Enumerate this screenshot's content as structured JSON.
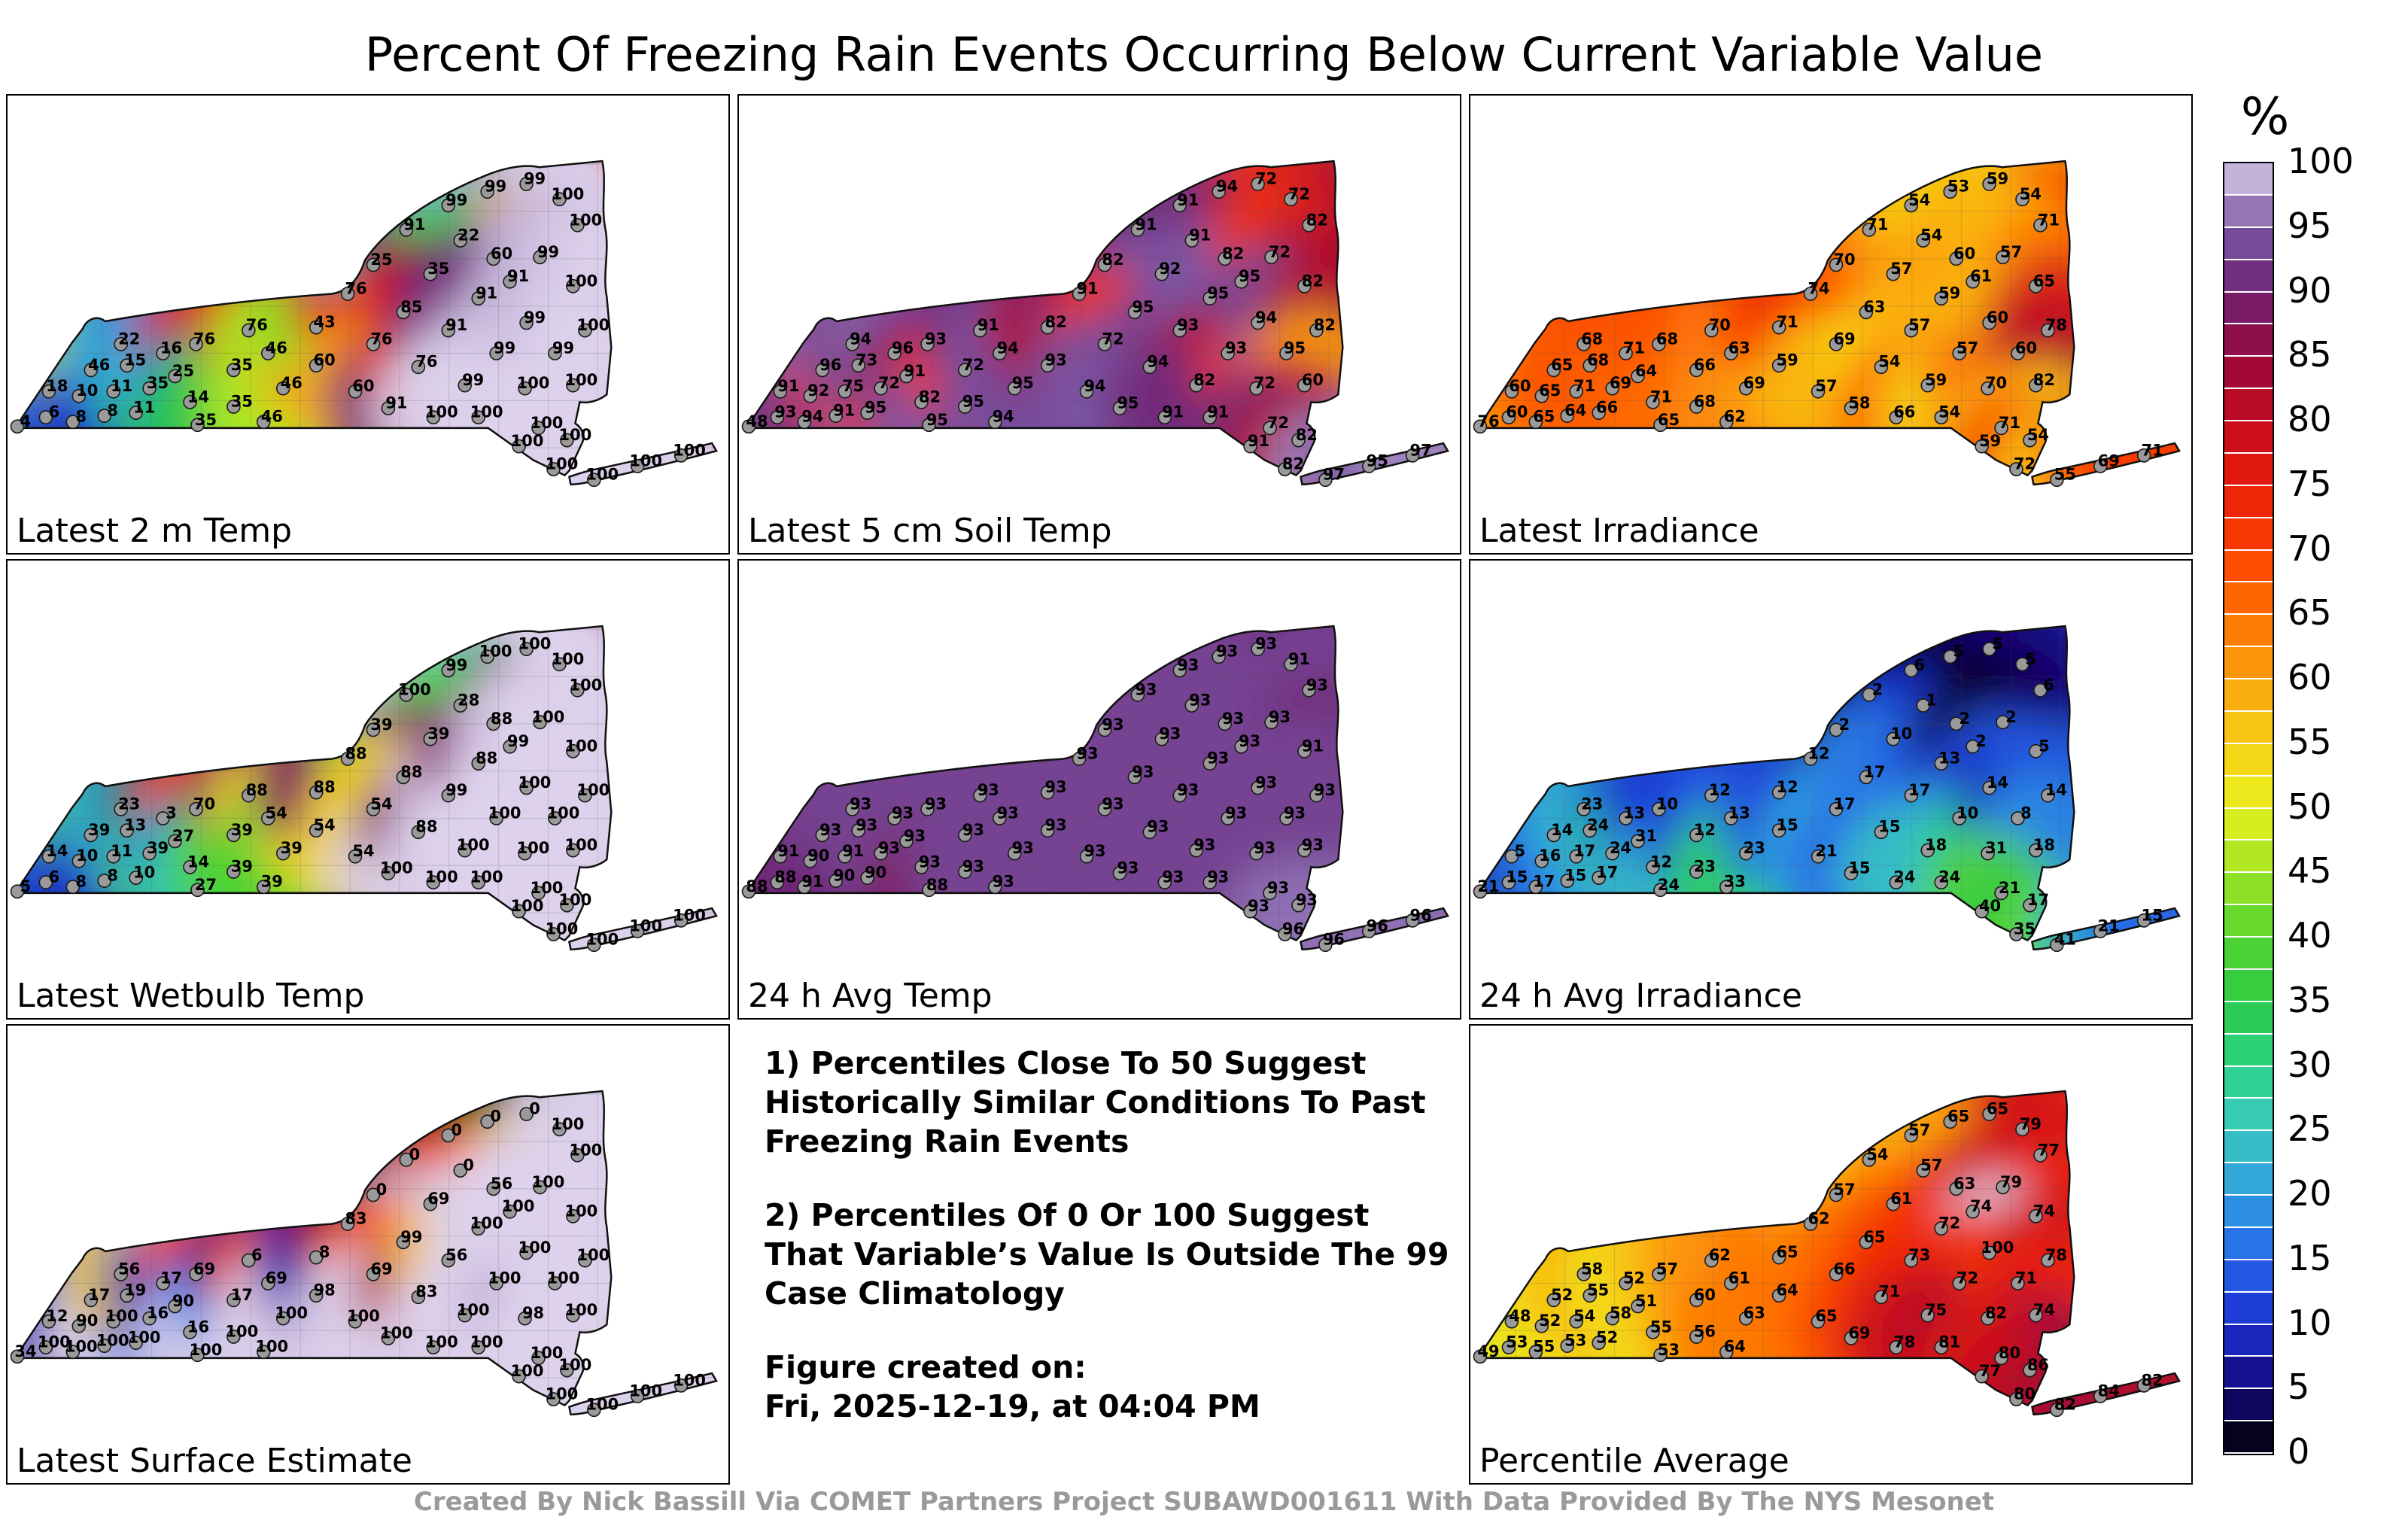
{
  "credit": "Created By Nick Bassill Via COMET Partners Project SUBAWD001611 With Data Provided By The NYS Mesonet",
  "notes": {
    "item1": "1) Percentiles Close To 50 Suggest Historically Similar Conditions To Past Freezing Rain Events",
    "item2": "2) Percentiles Of 0 Or 100 Suggest That Variable’s Value Is Outside The 99 Case Climatology",
    "created_label": "Figure created on:",
    "created_value": "Fri, 2025-12-19, at 04:04 PM"
  },
  "colorbar": {
    "unit_label": "%",
    "ticks": [
      100,
      95,
      90,
      85,
      80,
      75,
      70,
      65,
      60,
      55,
      50,
      45,
      40,
      35,
      30,
      25,
      20,
      15,
      10,
      5,
      0
    ]
  },
  "chart_data": {
    "type": "heatmap",
    "title": "Percent Of Freezing Rain Events Occurring Below Current Variable Value",
    "unit": "%",
    "value_range": [
      0,
      100
    ],
    "colormap_stops": [
      {
        "v": 0,
        "c": "#000000"
      },
      {
        "v": 5,
        "c": "#13077a"
      },
      {
        "v": 10,
        "c": "#1b2fd0"
      },
      {
        "v": 15,
        "c": "#2566e8"
      },
      {
        "v": 20,
        "c": "#2e9de0"
      },
      {
        "v": 25,
        "c": "#38c8c0"
      },
      {
        "v": 30,
        "c": "#2ed488"
      },
      {
        "v": 35,
        "c": "#2bca45"
      },
      {
        "v": 40,
        "c": "#55d52e"
      },
      {
        "v": 45,
        "c": "#9fe426"
      },
      {
        "v": 50,
        "c": "#e8f01e"
      },
      {
        "v": 55,
        "c": "#f6cf15"
      },
      {
        "v": 60,
        "c": "#fba10c"
      },
      {
        "v": 65,
        "c": "#fe7205"
      },
      {
        "v": 70,
        "c": "#fd4102"
      },
      {
        "v": 75,
        "c": "#e91c08"
      },
      {
        "v": 80,
        "c": "#c40a20"
      },
      {
        "v": 85,
        "c": "#98093f"
      },
      {
        "v": 90,
        "c": "#6e2173"
      },
      {
        "v": 95,
        "c": "#7c58a6"
      },
      {
        "v": 100,
        "c": "#dcd0ea"
      }
    ],
    "stations": [
      [
        22,
        426
      ],
      [
        60,
        414
      ],
      [
        96,
        420
      ],
      [
        64,
        380
      ],
      [
        104,
        386
      ],
      [
        120,
        352
      ],
      [
        138,
        412
      ],
      [
        150,
        380
      ],
      [
        168,
        346
      ],
      [
        180,
        408
      ],
      [
        198,
        376
      ],
      [
        160,
        318
      ],
      [
        216,
        330
      ],
      [
        232,
        360
      ],
      [
        260,
        318
      ],
      [
        252,
        394
      ],
      [
        262,
        424
      ],
      [
        310,
        400
      ],
      [
        310,
        352
      ],
      [
        330,
        300
      ],
      [
        356,
        330
      ],
      [
        376,
        376
      ],
      [
        350,
        420
      ],
      [
        420,
        346
      ],
      [
        420,
        296
      ],
      [
        462,
        252
      ],
      [
        496,
        214
      ],
      [
        540,
        168
      ],
      [
        596,
        136
      ],
      [
        648,
        118
      ],
      [
        700,
        108
      ],
      [
        744,
        128
      ],
      [
        768,
        162
      ],
      [
        612,
        182
      ],
      [
        656,
        206
      ],
      [
        572,
        226
      ],
      [
        536,
        276
      ],
      [
        496,
        318
      ],
      [
        472,
        380
      ],
      [
        516,
        402
      ],
      [
        556,
        348
      ],
      [
        596,
        300
      ],
      [
        636,
        258
      ],
      [
        678,
        236
      ],
      [
        718,
        204
      ],
      [
        762,
        242
      ],
      [
        700,
        290
      ],
      [
        660,
        330
      ],
      [
        618,
        372
      ],
      [
        576,
        414
      ],
      [
        636,
        414
      ],
      [
        698,
        376
      ],
      [
        738,
        330
      ],
      [
        778,
        300
      ],
      [
        762,
        372
      ],
      [
        716,
        428
      ],
      [
        754,
        444
      ],
      [
        690,
        452
      ],
      [
        736,
        482
      ],
      [
        790,
        496
      ],
      [
        848,
        478
      ],
      [
        906,
        464
      ]
    ],
    "panels": [
      {
        "label": "Latest 2 m Temp",
        "values": [
          4,
          6,
          8,
          18,
          10,
          46,
          8,
          11,
          15,
          11,
          35,
          22,
          16,
          25,
          76,
          14,
          35,
          35,
          35,
          76,
          46,
          46,
          46,
          60,
          43,
          76,
          25,
          91,
          99,
          99,
          99,
          100,
          100,
          22,
          60,
          35,
          85,
          76,
          60,
          91,
          76,
          91,
          91,
          91,
          99,
          100,
          99,
          99,
          99,
          100,
          100,
          100,
          99,
          100,
          100,
          100,
          100,
          100,
          100,
          100,
          100,
          100
        ]
      },
      {
        "label": "Latest 5 cm Soil Temp",
        "values": [
          48,
          93,
          94,
          91,
          92,
          96,
          91,
          75,
          73,
          95,
          72,
          94,
          96,
          91,
          93,
          82,
          95,
          95,
          72,
          91,
          94,
          95,
          94,
          93,
          82,
          91,
          82,
          91,
          91,
          94,
          72,
          72,
          82,
          91,
          82,
          92,
          95,
          72,
          94,
          95,
          94,
          93,
          95,
          95,
          72,
          82,
          94,
          93,
          82,
          91,
          91,
          72,
          95,
          82,
          60,
          72,
          82,
          91,
          82,
          97,
          95,
          97
        ]
      },
      {
        "label": "Latest Irradiance",
        "values": [
          76,
          60,
          65,
          60,
          65,
          65,
          64,
          71,
          68,
          66,
          69,
          68,
          71,
          64,
          68,
          71,
          65,
          68,
          66,
          70,
          63,
          69,
          62,
          59,
          71,
          74,
          70,
          71,
          54,
          53,
          59,
          54,
          71,
          54,
          60,
          57,
          63,
          69,
          57,
          58,
          54,
          57,
          59,
          61,
          57,
          65,
          60,
          57,
          59,
          66,
          54,
          70,
          60,
          78,
          82,
          71,
          54,
          59,
          72,
          55,
          69,
          71
        ]
      },
      {
        "label": "Latest Wetbulb Temp",
        "values": [
          5,
          6,
          8,
          14,
          10,
          39,
          8,
          11,
          13,
          10,
          39,
          23,
          3,
          27,
          70,
          14,
          27,
          39,
          39,
          88,
          54,
          39,
          39,
          54,
          88,
          88,
          39,
          100,
          99,
          100,
          100,
          100,
          100,
          28,
          88,
          39,
          88,
          54,
          54,
          100,
          88,
          99,
          88,
          99,
          100,
          100,
          100,
          100,
          100,
          100,
          100,
          100,
          100,
          100,
          100,
          100,
          100,
          100,
          100,
          100,
          100,
          100
        ]
      },
      {
        "label": "24 h Avg Temp",
        "values": [
          88,
          88,
          91,
          91,
          90,
          93,
          90,
          91,
          93,
          90,
          93,
          93,
          93,
          93,
          93,
          93,
          88,
          93,
          93,
          93,
          93,
          93,
          93,
          93,
          93,
          93,
          93,
          93,
          93,
          93,
          93,
          91,
          93,
          93,
          93,
          93,
          93,
          93,
          93,
          93,
          93,
          93,
          93,
          93,
          93,
          91,
          93,
          93,
          93,
          93,
          93,
          93,
          93,
          93,
          93,
          93,
          93,
          93,
          96,
          96,
          96,
          96
        ]
      },
      {
        "label": "24 h Avg Irradiance",
        "values": [
          21,
          15,
          17,
          5,
          16,
          14,
          15,
          17,
          24,
          17,
          24,
          23,
          13,
          31,
          10,
          12,
          24,
          23,
          12,
          12,
          13,
          23,
          33,
          15,
          12,
          12,
          2,
          2,
          6,
          5,
          5,
          5,
          6,
          1,
          2,
          10,
          17,
          17,
          21,
          15,
          15,
          17,
          13,
          2,
          2,
          5,
          14,
          10,
          18,
          24,
          24,
          31,
          8,
          14,
          18,
          21,
          17,
          40,
          35,
          41,
          21,
          15
        ]
      },
      {
        "label": "Latest Surface Estimate",
        "values": [
          34,
          100,
          100,
          12,
          90,
          17,
          100,
          100,
          19,
          100,
          16,
          56,
          17,
          90,
          69,
          16,
          100,
          100,
          17,
          6,
          69,
          100,
          100,
          98,
          8,
          83,
          0,
          0,
          0,
          0,
          0,
          100,
          100,
          0,
          56,
          69,
          99,
          69,
          100,
          100,
          83,
          56,
          100,
          100,
          100,
          100,
          100,
          100,
          100,
          100,
          100,
          98,
          100,
          100,
          100,
          100,
          100,
          100,
          100,
          100,
          100,
          100
        ]
      },
      {
        "label": "Percentile Average",
        "values": [
          49,
          53,
          55,
          48,
          52,
          52,
          53,
          54,
          55,
          52,
          58,
          58,
          52,
          51,
          57,
          55,
          53,
          56,
          60,
          62,
          61,
          63,
          64,
          64,
          65,
          62,
          57,
          54,
          57,
          65,
          65,
          79,
          77,
          57,
          63,
          61,
          65,
          66,
          65,
          69,
          71,
          73,
          72,
          74,
          79,
          74,
          100,
          72,
          75,
          78,
          81,
          82,
          71,
          78,
          74,
          80,
          86,
          77,
          80,
          82,
          84,
          82
        ]
      }
    ]
  }
}
